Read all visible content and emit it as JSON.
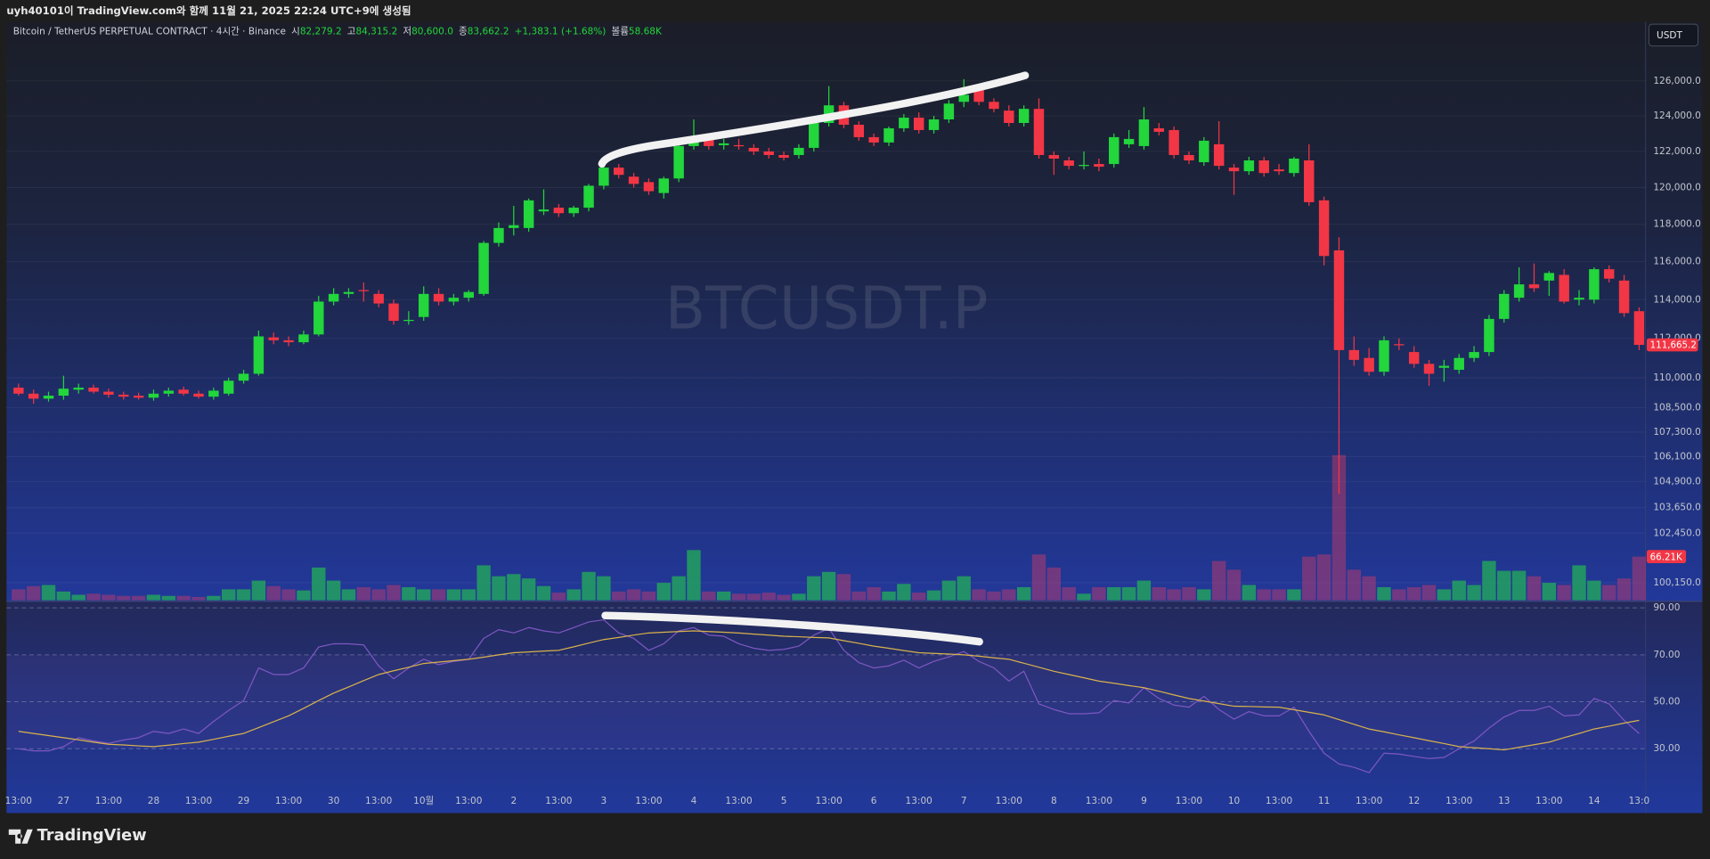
{
  "header": {
    "text": "uyh40101이 TradingView.com와 함께 11월 21, 2025 22:24 UTC+9에 생성됨"
  },
  "legend": {
    "symbol": "Bitcoin / TetherUS PERPETUAL CONTRACT · 4시간 · Binance",
    "open_label": "시",
    "open": "82,279.2",
    "high_label": "고",
    "high": "84,315.2",
    "low_label": "저",
    "low": "80,600.0",
    "close_label": "종",
    "close": "83,662.2",
    "change": "+1,383.1 (+1.68%)",
    "volume_label": "볼륨",
    "volume": "58.68K"
  },
  "currency": "USDT",
  "watermark": "BTCUSDT.P",
  "brand": "TradingView",
  "chart_data": [
    {
      "type": "candlestick",
      "log_scale": true,
      "grid": true,
      "up_color": "#22d63c",
      "down_color": "#f23645",
      "categories": [
        "13:00",
        null,
        null,
        "27",
        null,
        null,
        "13:00",
        null,
        null,
        "28",
        null,
        null,
        "13:00",
        null,
        null,
        "29",
        null,
        null,
        "13:00",
        null,
        null,
        "30",
        null,
        null,
        "13:00",
        null,
        null,
        "10월",
        null,
        null,
        "13:00",
        null,
        null,
        "2",
        null,
        null,
        "13:00",
        null,
        null,
        "3",
        null,
        null,
        "13:00",
        null,
        null,
        "4",
        null,
        null,
        "13:00",
        null,
        null,
        "5",
        null,
        null,
        "13:00",
        null,
        null,
        "6",
        null,
        null,
        "13:00",
        null,
        null,
        "7",
        null,
        null,
        "13:00",
        null,
        null,
        "8",
        null,
        null,
        "13:00",
        null,
        null,
        "9",
        null,
        null,
        "13:00",
        null,
        null,
        "10",
        null,
        null,
        "13:00",
        null,
        null,
        "11",
        null,
        null,
        "13:00",
        null,
        null,
        "12",
        null,
        null,
        "13:00",
        null,
        null,
        "13",
        null,
        null,
        "13:00",
        null,
        null,
        "14",
        null,
        null,
        "13:0"
      ],
      "open": [
        109500,
        109200,
        108950,
        109100,
        109400,
        109500,
        109300,
        109150,
        109100,
        109000,
        109200,
        109400,
        109200,
        109050,
        109200,
        109850,
        110200,
        112050,
        111900,
        111800,
        112200,
        113900,
        114300,
        114500,
        114300,
        113800,
        112900,
        113100,
        114300,
        113900,
        114100,
        114300,
        117000,
        117800,
        117800,
        118700,
        118900,
        118600,
        118900,
        120100,
        121100,
        120600,
        120300,
        119700,
        120500,
        122300,
        122800,
        122350,
        122350,
        122200,
        122000,
        121800,
        121800,
        122200,
        123600,
        124600,
        123500,
        122800,
        122500,
        123300,
        123900,
        123200,
        123800,
        124800,
        125500,
        124800,
        124300,
        123600,
        124400,
        121800,
        121500,
        121200,
        121300,
        121300,
        122400,
        122300,
        123300,
        123200,
        121800,
        121400,
        122400,
        121100,
        120900,
        121500,
        121000,
        120800,
        121500,
        119300,
        116600,
        111400,
        111000,
        110300,
        111700,
        111300,
        110700,
        110500,
        110400,
        111000,
        111300,
        113000,
        114100,
        114800,
        115000,
        115300,
        114000,
        114000,
        115600,
        115000,
        113400
      ],
      "high": [
        109700,
        109400,
        109300,
        110100,
        109700,
        109650,
        109450,
        109300,
        109250,
        109400,
        109500,
        109550,
        109350,
        109500,
        110000,
        110400,
        112400,
        112300,
        112100,
        112400,
        114200,
        114600,
        114600,
        114900,
        114500,
        114000,
        113400,
        114700,
        114600,
        114300,
        114500,
        117100,
        118100,
        119000,
        119400,
        119900,
        119100,
        119000,
        120200,
        121200,
        121300,
        120800,
        120500,
        120600,
        122400,
        123800,
        123000,
        122700,
        122700,
        122400,
        122200,
        122000,
        122400,
        123800,
        125700,
        124800,
        123700,
        123000,
        123400,
        124100,
        124200,
        124000,
        124900,
        126100,
        125700,
        125000,
        124600,
        124600,
        125000,
        122000,
        121700,
        122000,
        121600,
        123000,
        123200,
        124500,
        123600,
        123400,
        122000,
        122800,
        123700,
        121300,
        121700,
        121700,
        121300,
        121700,
        122400,
        119500,
        117300,
        112100,
        111500,
        112100,
        112000,
        111600,
        110900,
        110900,
        111200,
        111600,
        113200,
        114500,
        115700,
        115900,
        115500,
        115600,
        114500,
        115700,
        115800,
        115300,
        113600
      ],
      "low": [
        109100,
        108700,
        108800,
        108900,
        109200,
        109200,
        109000,
        108900,
        108900,
        108850,
        109050,
        109100,
        108950,
        108900,
        109100,
        109700,
        110100,
        111700,
        111600,
        111700,
        112100,
        113700,
        114100,
        113900,
        113600,
        112700,
        112700,
        112900,
        113700,
        113700,
        113900,
        114200,
        116800,
        117400,
        117600,
        118500,
        118400,
        118400,
        118700,
        119900,
        120500,
        120000,
        119600,
        119400,
        120300,
        122100,
        122100,
        122100,
        122100,
        121800,
        121600,
        121500,
        121600,
        122000,
        123400,
        123300,
        122600,
        122300,
        122300,
        123100,
        123000,
        123000,
        123600,
        124500,
        124600,
        124200,
        123400,
        123400,
        121600,
        120700,
        121000,
        121000,
        120900,
        121100,
        122200,
        122100,
        122900,
        121600,
        121300,
        121200,
        121000,
        119600,
        120700,
        120600,
        120700,
        120600,
        119000,
        115800,
        104300,
        110600,
        110100,
        110100,
        111400,
        110500,
        109600,
        109800,
        110200,
        110800,
        111100,
        112800,
        113900,
        114400,
        114200,
        113800,
        113700,
        113800,
        114900,
        113100,
        111400
      ],
      "close": [
        109200,
        108950,
        109100,
        109450,
        109500,
        109300,
        109150,
        109050,
        109000,
        109200,
        109350,
        109200,
        109050,
        109350,
        109850,
        110200,
        112100,
        111900,
        111800,
        112200,
        113900,
        114300,
        114400,
        114450,
        113800,
        112900,
        112950,
        114300,
        113900,
        114100,
        114400,
        117000,
        117800,
        117950,
        119300,
        118800,
        118600,
        118900,
        120100,
        121100,
        120700,
        120200,
        119800,
        120500,
        122300,
        122800,
        122300,
        122450,
        122300,
        122000,
        121800,
        121650,
        122200,
        123600,
        124600,
        123500,
        122800,
        122500,
        123300,
        123900,
        123200,
        123800,
        124700,
        125200,
        124800,
        124400,
        123600,
        124400,
        121800,
        121600,
        121200,
        121250,
        121150,
        122800,
        122700,
        123800,
        123100,
        121800,
        121500,
        122600,
        121200,
        120900,
        121500,
        120800,
        120900,
        121600,
        119200,
        116300,
        111400,
        110900,
        110300,
        111900,
        111650,
        110700,
        110200,
        110600,
        111000,
        111300,
        113000,
        114300,
        114800,
        114600,
        115400,
        113900,
        114100,
        115600,
        115100,
        113300,
        111665.2
      ],
      "last_close_label": "111,665.2",
      "ylim": [
        99350,
        127840
      ],
      "yticks": [
        {
          "value": 126000,
          "label": "126,000.0"
        },
        {
          "value": 124000,
          "label": "124,000.0"
        },
        {
          "value": 122000,
          "label": "122,000.0"
        },
        {
          "value": 120000,
          "label": "120,000.0"
        },
        {
          "value": 118000,
          "label": "118,000.0"
        },
        {
          "value": 116000,
          "label": "116,000.0"
        },
        {
          "value": 114000,
          "label": "114,000.0"
        },
        {
          "value": 112000,
          "label": "112,000.0"
        },
        {
          "value": 110000,
          "label": "110,000.0"
        },
        {
          "value": 108500,
          "label": "108,500.0"
        },
        {
          "value": 107300,
          "label": "107,300.0"
        },
        {
          "value": 106100,
          "label": "106,100.0"
        },
        {
          "value": 104900,
          "label": "104,900.0"
        },
        {
          "value": 103650,
          "label": "103,650.0"
        },
        {
          "value": 102450,
          "label": "102,450.0"
        },
        {
          "value": 100150,
          "label": "100,150.0"
        }
      ],
      "volume": {
        "up_color": "rgba(34,170,90,0.78)",
        "down_color": "rgba(224,60,100,0.42)",
        "ylim": [
          0,
          331000
        ],
        "values": [
          16550,
          21515,
          23170,
          13240,
          8275,
          9930,
          8275,
          6620,
          6620,
          8275,
          6620,
          6620,
          4965,
          6620,
          16550,
          16550,
          29790,
          21515,
          16550,
          14895,
          49650,
          29790,
          16550,
          19860,
          16550,
          23170,
          19860,
          16550,
          16550,
          16550,
          16550,
          52960,
          36410,
          39720,
          33100,
          21515,
          11585,
          16550,
          43030,
          36410,
          13240,
          16550,
          13240,
          26480,
          36410,
          76130,
          13240,
          13240,
          9930,
          9930,
          11585,
          8275,
          9930,
          36410,
          43030,
          39720,
          13240,
          19860,
          13240,
          24825,
          11585,
          14895,
          29790,
          36410,
          16550,
          13240,
          16550,
          19860,
          69510,
          49650,
          19860,
          9930,
          19860,
          19860,
          19860,
          29790,
          19860,
          16550,
          19860,
          16550,
          59580,
          46340,
          23170,
          16550,
          16550,
          16550,
          66200,
          69510,
          220115,
          46340,
          36410,
          19860,
          16550,
          19860,
          23170,
          16550,
          29790,
          23170,
          59580,
          44685,
          44685,
          36410,
          26480,
          23170,
          52960,
          29790,
          23170,
          33100,
          66210
        ],
        "last_label": "66.21K"
      }
    },
    {
      "type": "line",
      "ylim": [
        11.9,
        92.3
      ],
      "yticks": [
        {
          "value": 90,
          "label": "90.00"
        },
        {
          "value": 70,
          "label": "70.00"
        },
        {
          "value": 50,
          "label": "50.00"
        },
        {
          "value": 30,
          "label": "30.00"
        }
      ],
      "band": [
        30,
        70
      ],
      "band_color": "rgba(126,87,194,0.10)",
      "series": [
        {
          "color": "#7e57c2",
          "values": [
            30.0,
            29.1,
            29.1,
            30.9,
            34.7,
            33.3,
            32.3,
            33.7,
            34.7,
            37.4,
            36.5,
            38.4,
            36.5,
            41.6,
            46.3,
            50.5,
            64.4,
            61.6,
            61.6,
            64.4,
            73.3,
            74.7,
            74.7,
            74.2,
            65.3,
            59.8,
            64.4,
            68.1,
            65.8,
            67.2,
            68.1,
            77.0,
            80.7,
            79.3,
            81.6,
            80.2,
            79.3,
            81.6,
            84.0,
            84.9,
            79.3,
            77.0,
            71.9,
            74.7,
            80.2,
            81.6,
            78.4,
            77.9,
            74.7,
            72.8,
            71.9,
            72.3,
            73.7,
            78.4,
            81.2,
            71.9,
            66.7,
            64.4,
            65.3,
            67.7,
            64.4,
            67.2,
            69.1,
            71.4,
            67.2,
            64.4,
            58.8,
            63.0,
            49.1,
            46.7,
            44.9,
            44.9,
            45.3,
            50.5,
            49.5,
            56.0,
            51.4,
            48.6,
            47.7,
            52.3,
            46.7,
            42.6,
            45.8,
            44.0,
            44.0,
            47.7,
            37.4,
            28.1,
            23.5,
            22.1,
            19.8,
            28.1,
            27.7,
            26.7,
            25.8,
            26.3,
            30.0,
            33.3,
            38.8,
            43.5,
            46.3,
            46.3,
            48.1,
            44.0,
            44.4,
            51.4,
            49.1,
            42.1,
            36.5
          ]
        },
        {
          "color": "#d9b24c",
          "values": [
            37.4,
            36.5,
            35.6,
            34.7,
            33.8,
            32.8,
            31.9,
            31.6,
            31.2,
            30.9,
            31.5,
            32.2,
            32.8,
            34.0,
            35.3,
            36.5,
            39.0,
            41.5,
            44.0,
            47.2,
            50.5,
            53.7,
            56.3,
            59.0,
            61.6,
            63.2,
            64.7,
            66.3,
            66.9,
            67.5,
            68.1,
            69.0,
            70.0,
            70.9,
            71.2,
            71.6,
            71.9,
            73.4,
            75.0,
            76.5,
            77.4,
            78.4,
            79.3,
            79.6,
            79.9,
            80.2,
            79.9,
            79.6,
            79.3,
            78.8,
            78.4,
            77.9,
            77.7,
            77.4,
            77.2,
            76.0,
            74.9,
            73.7,
            72.8,
            71.8,
            70.9,
            70.6,
            70.3,
            70.0,
            69.4,
            68.7,
            68.1,
            66.4,
            64.7,
            63.0,
            61.6,
            60.2,
            58.8,
            57.9,
            56.9,
            56.0,
            54.5,
            52.9,
            51.4,
            50.3,
            49.2,
            48.1,
            48.0,
            47.8,
            47.7,
            46.6,
            45.5,
            44.4,
            42.4,
            40.4,
            38.4,
            37.2,
            35.9,
            34.7,
            33.4,
            32.2,
            30.9,
            30.4,
            30.0,
            29.5,
            30.6,
            31.7,
            32.8,
            34.7,
            36.5,
            38.4,
            39.6,
            40.9,
            42.1
          ]
        }
      ]
    }
  ]
}
